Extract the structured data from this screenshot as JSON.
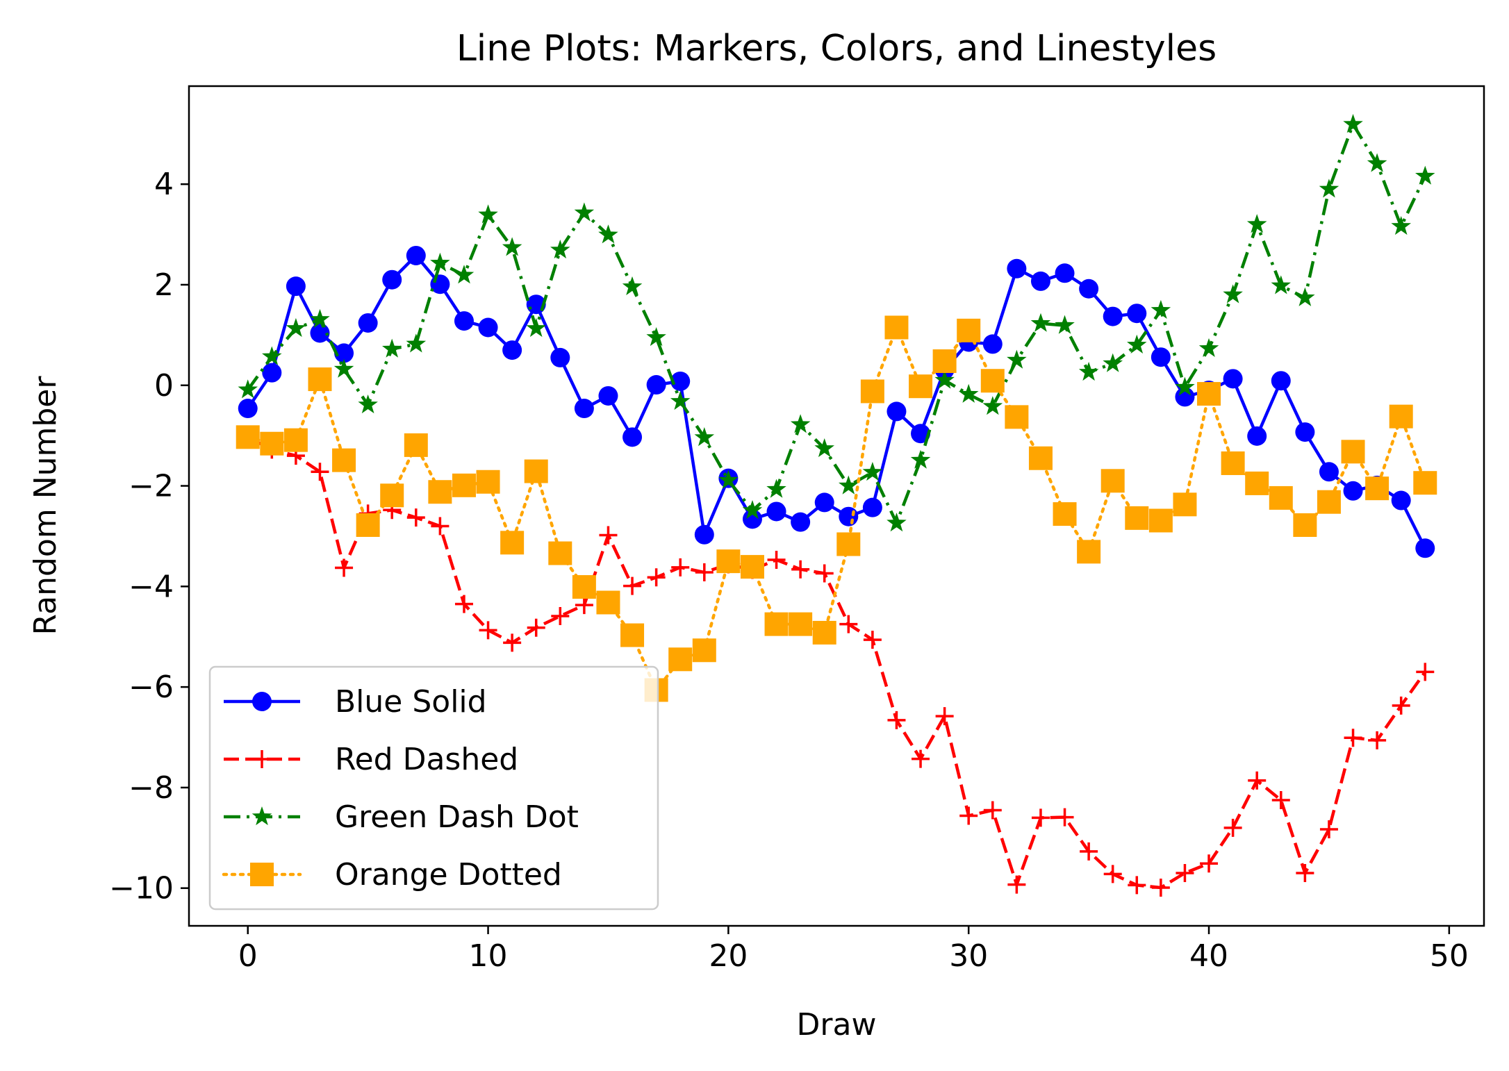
{
  "chart_data": {
    "type": "line",
    "title": "Line Plots: Markers, Colors, and Linestyles",
    "xlabel": "Draw",
    "ylabel": "Random Number",
    "xlim": [
      -2.45,
      51.45
    ],
    "ylim": [
      -10.75,
      5.95
    ],
    "xticks": [
      0,
      10,
      20,
      30,
      40,
      50
    ],
    "xtick_labels": [
      "0",
      "10",
      "20",
      "30",
      "40",
      "50"
    ],
    "yticks": [
      4,
      2,
      0,
      -2,
      -4,
      -6,
      -8,
      -10
    ],
    "ytick_labels": [
      "4",
      "2",
      "0",
      "−2",
      "−4",
      "−6",
      "−8",
      "−10"
    ],
    "grid": false,
    "legend_position": "lower-left",
    "x": [
      0,
      1,
      2,
      3,
      4,
      5,
      6,
      7,
      8,
      9,
      10,
      11,
      12,
      13,
      14,
      15,
      16,
      17,
      18,
      19,
      20,
      21,
      22,
      23,
      24,
      25,
      26,
      27,
      28,
      29,
      30,
      31,
      32,
      33,
      34,
      35,
      36,
      37,
      38,
      39,
      40,
      41,
      42,
      43,
      44,
      45,
      46,
      47,
      48,
      49
    ],
    "series": [
      {
        "name": "Blue Solid",
        "color": "#0000ff",
        "linestyle": "solid",
        "marker": "circle",
        "values": [
          -0.46,
          0.25,
          1.97,
          1.04,
          0.64,
          1.24,
          2.1,
          2.58,
          2.01,
          1.28,
          1.15,
          0.7,
          1.61,
          0.55,
          -0.46,
          -0.21,
          -1.03,
          0.01,
          0.08,
          -2.97,
          -1.85,
          -2.66,
          -2.51,
          -2.72,
          -2.33,
          -2.61,
          -2.43,
          -0.52,
          -0.96,
          0.31,
          0.86,
          0.82,
          2.32,
          2.07,
          2.23,
          1.92,
          1.37,
          1.43,
          0.56,
          -0.23,
          -0.1,
          0.13,
          -1.01,
          0.09,
          -0.93,
          -1.72,
          -2.1,
          -1.99,
          -2.29,
          -3.24
        ]
      },
      {
        "name": "Red Dashed",
        "color": "#ff0000",
        "linestyle": "dashed",
        "marker": "plus",
        "values": [
          -1.03,
          -1.28,
          -1.4,
          -1.72,
          -3.63,
          -2.55,
          -2.48,
          -2.63,
          -2.8,
          -4.35,
          -4.87,
          -5.12,
          -4.82,
          -4.59,
          -4.37,
          -2.98,
          -3.99,
          -3.82,
          -3.62,
          -3.72,
          -3.56,
          -3.67,
          -3.47,
          -3.66,
          -3.74,
          -4.75,
          -5.06,
          -6.66,
          -7.43,
          -6.58,
          -8.56,
          -8.45,
          -9.93,
          -8.6,
          -8.59,
          -9.27,
          -9.72,
          -9.94,
          -9.99,
          -9.7,
          -9.51,
          -8.8,
          -7.86,
          -8.25,
          -9.7,
          -8.83,
          -7.01,
          -7.06,
          -6.37,
          -5.7
        ]
      },
      {
        "name": "Green Dash Dot",
        "color": "#008000",
        "linestyle": "dashdot",
        "marker": "star",
        "values": [
          -0.09,
          0.57,
          1.13,
          1.31,
          0.32,
          -0.39,
          0.72,
          0.82,
          2.43,
          2.19,
          3.39,
          2.74,
          1.13,
          2.69,
          3.43,
          2.99,
          1.96,
          0.95,
          -0.32,
          -1.04,
          -1.89,
          -2.49,
          -2.07,
          -0.78,
          -1.26,
          -2.0,
          -1.73,
          -2.74,
          -1.49,
          0.1,
          -0.18,
          -0.42,
          0.5,
          1.23,
          1.19,
          0.26,
          0.43,
          0.8,
          1.49,
          -0.04,
          0.73,
          1.8,
          3.2,
          1.98,
          1.74,
          3.9,
          5.19,
          4.41,
          3.16,
          4.16
        ]
      },
      {
        "name": "Orange Dotted",
        "color": "#ffa500",
        "linestyle": "dotted",
        "marker": "square",
        "values": [
          -1.03,
          -1.16,
          -1.09,
          0.12,
          -1.49,
          -2.78,
          -2.19,
          -1.19,
          -2.12,
          -1.99,
          -1.92,
          -3.13,
          -1.71,
          -3.34,
          -4.01,
          -4.32,
          -4.97,
          -6.06,
          -5.45,
          -5.27,
          -3.5,
          -3.61,
          -4.75,
          -4.75,
          -4.92,
          -3.16,
          -0.12,
          1.15,
          -0.02,
          0.48,
          1.09,
          0.09,
          -0.63,
          -1.45,
          -2.56,
          -3.31,
          -1.9,
          -2.64,
          -2.69,
          -2.37,
          -0.17,
          -1.55,
          -1.95,
          -2.24,
          -2.78,
          -2.32,
          -1.32,
          -2.05,
          -0.62,
          -1.94
        ]
      }
    ]
  }
}
